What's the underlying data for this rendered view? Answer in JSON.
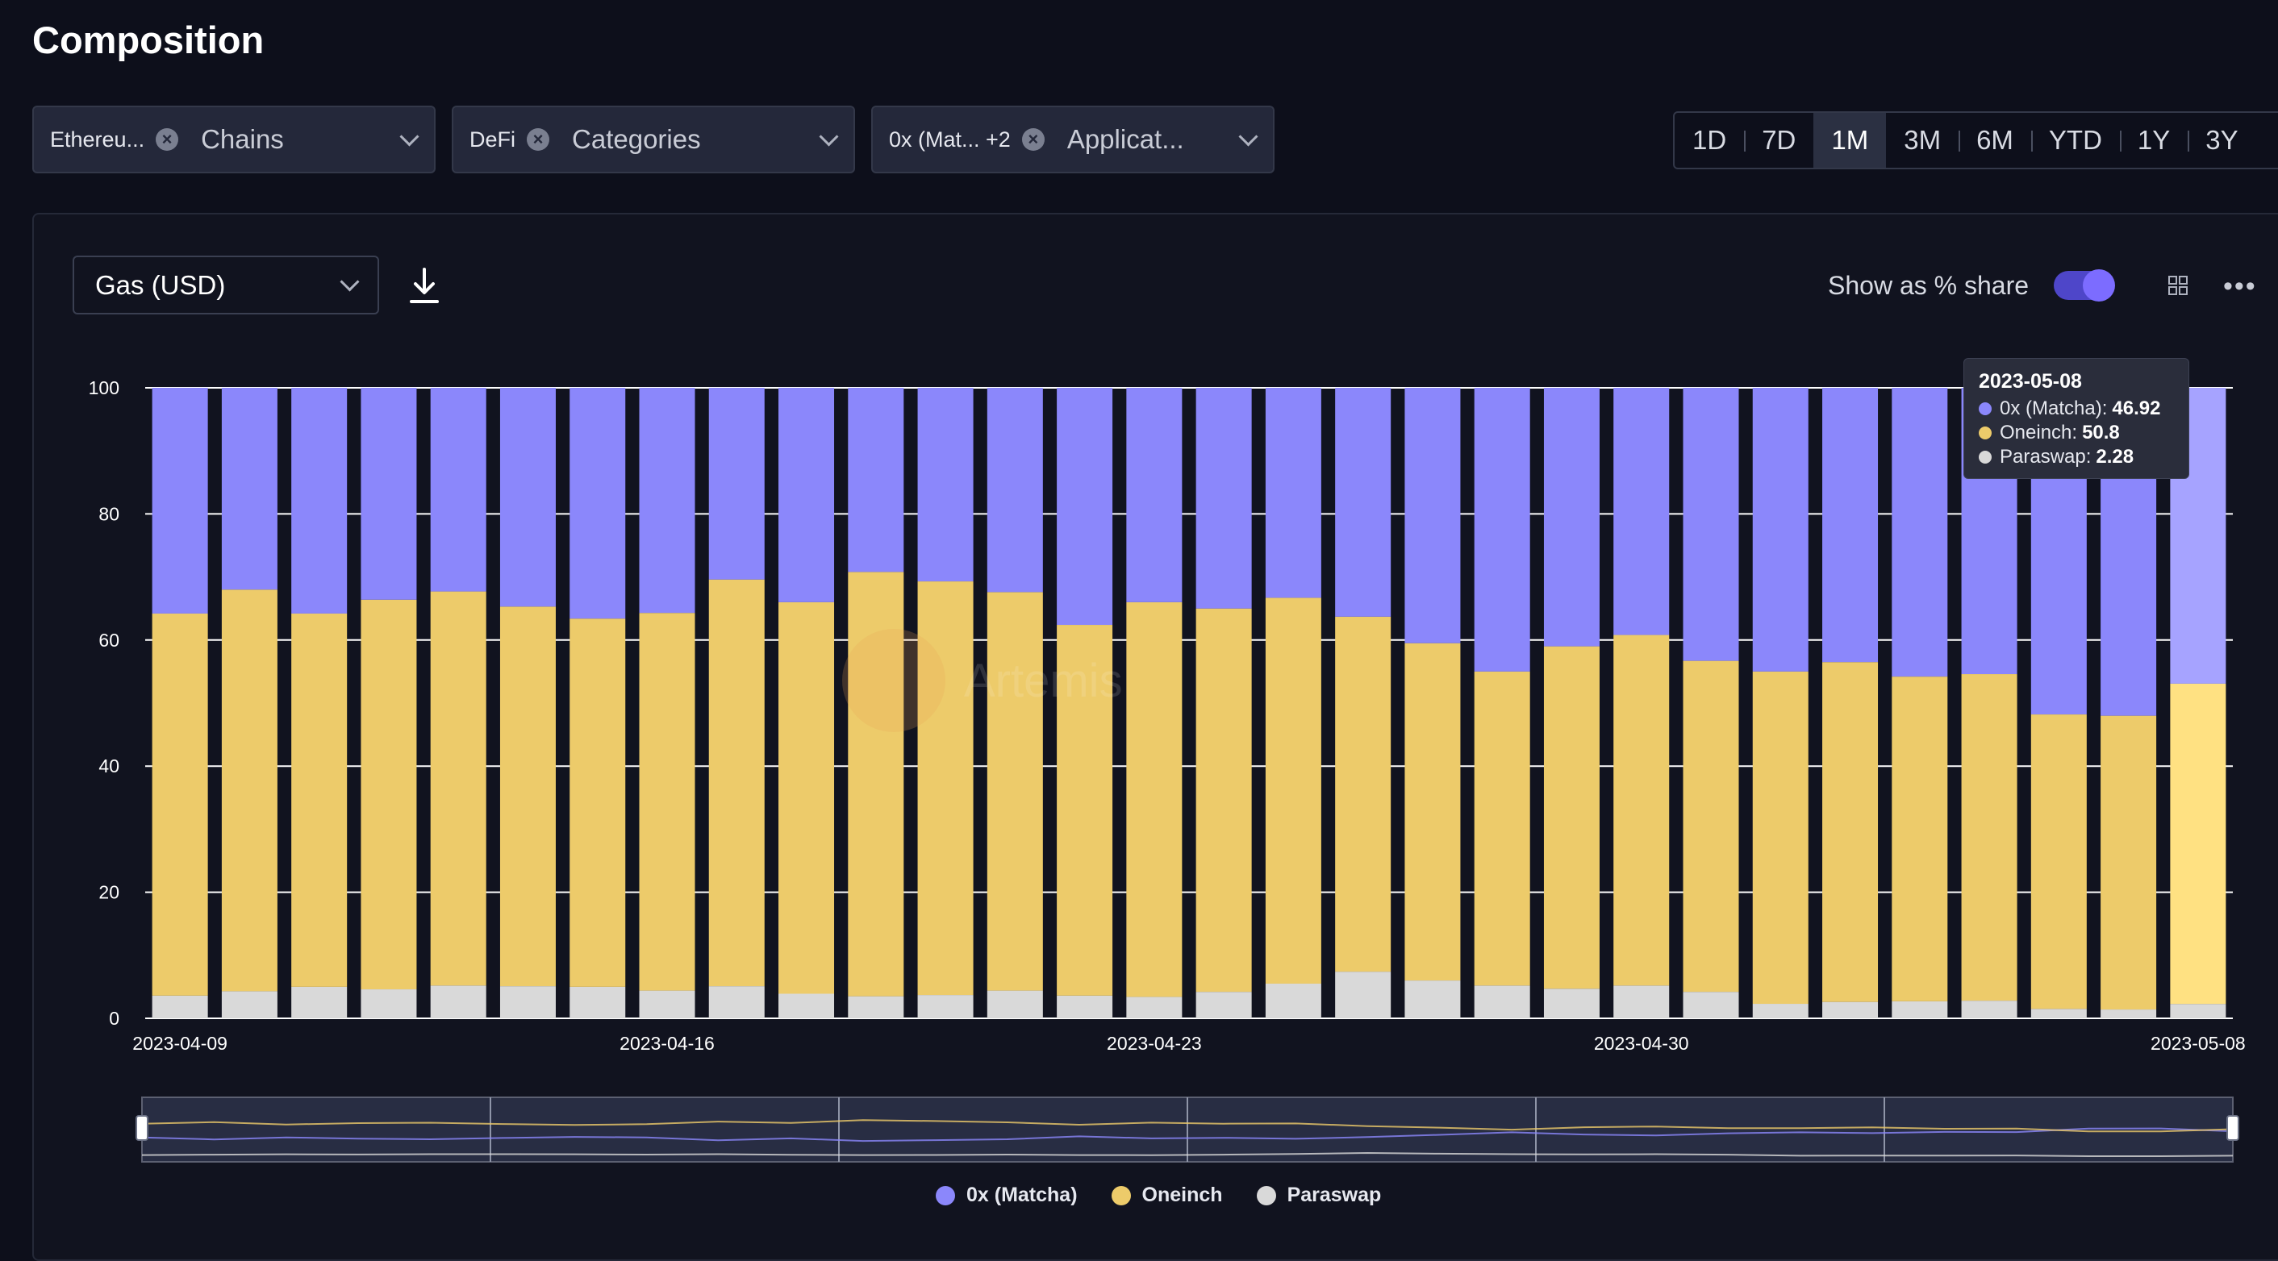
{
  "page_title": "Composition",
  "filters": [
    {
      "chip": "Ethereu...",
      "label": "Chains"
    },
    {
      "chip": "DeFi",
      "label": "Categories"
    },
    {
      "chip": "0x (Mat... +2",
      "label": "Applicat..."
    }
  ],
  "time_ranges": [
    "1D",
    "7D",
    "1M",
    "3M",
    "6M",
    "YTD",
    "1Y",
    "3Y"
  ],
  "active_range": "1M",
  "metric_select": "Gas (USD)",
  "share_toggle": {
    "label": "Show as % share",
    "on": true
  },
  "watermark": "Artemis",
  "tooltip": {
    "date": "2023-05-08",
    "rows": [
      {
        "name": "0x (Matcha)",
        "value": "46.92",
        "color": "#8b87fb"
      },
      {
        "name": "Oneinch",
        "value": "50.8",
        "color": "#edcb6a"
      },
      {
        "name": "Paraswap",
        "value": "2.28",
        "color": "#d9d9d9"
      }
    ]
  },
  "colors": {
    "matcha": "#8b87fb",
    "oneinch": "#edcb6a",
    "paraswap": "#d9d9d9",
    "highlight_matcha": "#a6a3ff",
    "highlight_oneinch": "#ffe182",
    "background": "#0d0f1b"
  },
  "chart_data": {
    "type": "bar",
    "stacked": true,
    "percent": true,
    "x": [
      "2023-04-09",
      "2023-04-10",
      "2023-04-11",
      "2023-04-12",
      "2023-04-13",
      "2023-04-14",
      "2023-04-15",
      "2023-04-16",
      "2023-04-17",
      "2023-04-18",
      "2023-04-19",
      "2023-04-20",
      "2023-04-21",
      "2023-04-22",
      "2023-04-23",
      "2023-04-24",
      "2023-04-25",
      "2023-04-26",
      "2023-04-27",
      "2023-04-28",
      "2023-04-29",
      "2023-04-30",
      "2023-05-01",
      "2023-05-02",
      "2023-05-03",
      "2023-05-04",
      "2023-05-05",
      "2023-05-06",
      "2023-05-07",
      "2023-05-08"
    ],
    "x_tick_labels": [
      "2023-04-09",
      "2023-04-16",
      "2023-04-23",
      "2023-04-30",
      "2023-05-08"
    ],
    "series": [
      {
        "name": "0x (Matcha)",
        "values": [
          35.8,
          32.0,
          35.8,
          33.6,
          32.3,
          34.7,
          36.6,
          35.7,
          30.4,
          34.0,
          29.2,
          30.7,
          32.4,
          37.6,
          34.0,
          35.0,
          33.3,
          36.3,
          40.5,
          45.0,
          41.0,
          39.2,
          43.3,
          45.0,
          43.5,
          45.8,
          45.4,
          51.8,
          52.0,
          46.92
        ]
      },
      {
        "name": "Oneinch",
        "values": [
          60.6,
          63.7,
          59.2,
          61.8,
          62.5,
          60.2,
          58.4,
          59.9,
          64.5,
          62.1,
          67.3,
          65.6,
          63.2,
          58.8,
          62.6,
          60.8,
          61.2,
          56.3,
          53.5,
          49.8,
          54.3,
          55.6,
          52.5,
          52.7,
          53.9,
          51.5,
          51.8,
          46.7,
          46.6,
          50.8
        ]
      },
      {
        "name": "Paraswap",
        "values": [
          3.6,
          4.3,
          5.0,
          4.6,
          5.2,
          5.1,
          5.0,
          4.4,
          5.1,
          3.9,
          3.5,
          3.7,
          4.4,
          3.6,
          3.4,
          4.2,
          5.5,
          7.4,
          6.0,
          5.2,
          4.7,
          5.2,
          4.2,
          2.3,
          2.6,
          2.7,
          2.8,
          1.5,
          1.4,
          2.28
        ]
      }
    ],
    "ylim": [
      0,
      100
    ],
    "yticks": [
      0,
      20,
      40,
      60,
      80,
      100
    ],
    "highlighted_x": "2023-05-08",
    "legend_position": "bottom-center",
    "grid": true
  }
}
